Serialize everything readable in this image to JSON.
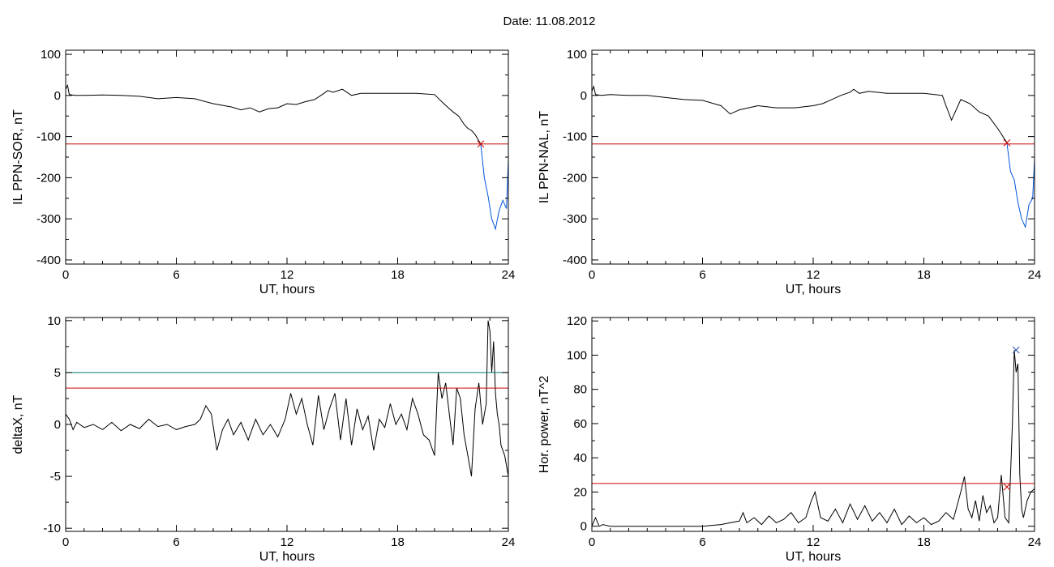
{
  "page": {
    "title": "Date:  11.08.2012"
  },
  "chart_data": [
    {
      "type": "line",
      "xlabel": "UT, hours",
      "ylabel": "IL PPN-SOR, nT",
      "xlim": [
        0,
        24
      ],
      "ylim": [
        -410,
        110
      ],
      "xticks": [
        0,
        6,
        12,
        18,
        24
      ],
      "yticks": [
        100,
        0,
        -100,
        -200,
        -300,
        -400
      ],
      "thresholds": [
        {
          "value": -118,
          "color": "#cc0000"
        }
      ],
      "markers": [
        {
          "x": 22.5,
          "y": -118,
          "color": "#cc0000",
          "symbol": "x"
        }
      ],
      "series": [
        {
          "color": "#000000",
          "x": [
            0,
            0.1,
            0.2,
            0.5,
            1,
            2,
            3,
            4,
            5,
            6,
            7,
            8,
            9,
            9.5,
            10,
            10.5,
            11,
            11.5,
            12,
            12.5,
            13,
            13.5,
            14,
            14.2,
            14.5,
            15,
            15.5,
            16,
            17,
            18,
            19,
            20,
            20.5,
            21,
            21.3,
            21.6,
            21.8,
            22,
            22.2,
            22.5
          ],
          "y": [
            15,
            25,
            2,
            0,
            0,
            1,
            0,
            -2,
            -8,
            -5,
            -8,
            -20,
            -28,
            -35,
            -30,
            -40,
            -32,
            -30,
            -20,
            -22,
            -15,
            -10,
            5,
            12,
            8,
            15,
            0,
            5,
            5,
            5,
            5,
            2,
            -20,
            -40,
            -50,
            -70,
            -80,
            -85,
            -95,
            -118
          ]
        },
        {
          "color": "#0055dd",
          "x": [
            22.5,
            22.7,
            22.9,
            23.1,
            23.3,
            23.5,
            23.7,
            23.9,
            24
          ],
          "y": [
            -118,
            -200,
            -245,
            -300,
            -325,
            -280,
            -255,
            -275,
            -155
          ]
        }
      ]
    },
    {
      "type": "line",
      "xlabel": "UT, hours",
      "ylabel": "IL PPN-NAL, nT",
      "xlim": [
        0,
        24
      ],
      "ylim": [
        -410,
        110
      ],
      "xticks": [
        0,
        6,
        12,
        18,
        24
      ],
      "yticks": [
        100,
        0,
        -100,
        -200,
        -300,
        -400
      ],
      "thresholds": [
        {
          "value": -118,
          "color": "#cc0000"
        }
      ],
      "markers": [
        {
          "x": 22.5,
          "y": -115,
          "color": "#cc0000",
          "symbol": "x"
        }
      ],
      "series": [
        {
          "color": "#000000",
          "x": [
            0,
            0.1,
            0.2,
            0.5,
            1,
            2,
            3,
            4,
            5,
            6,
            7,
            7.5,
            8,
            9,
            10,
            11,
            12,
            12.5,
            13,
            13.5,
            14,
            14.2,
            14.5,
            15,
            16,
            17,
            18,
            19,
            19.2,
            19.5,
            20,
            20.5,
            21,
            21.5,
            22,
            22.5
          ],
          "y": [
            10,
            22,
            2,
            0,
            2,
            0,
            0,
            -5,
            -10,
            -12,
            -25,
            -45,
            -35,
            -25,
            -30,
            -30,
            -25,
            -20,
            -10,
            0,
            8,
            15,
            5,
            10,
            5,
            5,
            5,
            0,
            -25,
            -60,
            -10,
            -20,
            -40,
            -50,
            -80,
            -115
          ]
        },
        {
          "color": "#0055dd",
          "x": [
            22.5,
            22.7,
            22.9,
            23.1,
            23.3,
            23.5,
            23.7,
            23.9,
            24
          ],
          "y": [
            -115,
            -185,
            -205,
            -260,
            -300,
            -320,
            -265,
            -250,
            -155
          ]
        }
      ]
    },
    {
      "type": "line",
      "xlabel": "UT, hours",
      "ylabel": "deltaX, nT",
      "xlim": [
        0,
        24
      ],
      "ylim": [
        -10.3,
        10.3
      ],
      "xticks": [
        0,
        6,
        12,
        18,
        24
      ],
      "yticks": [
        10,
        5,
        0,
        -5,
        -10
      ],
      "thresholds": [
        {
          "value": 5,
          "color": "#007777"
        },
        {
          "value": 3.5,
          "color": "#cc0000"
        }
      ],
      "markers": [],
      "series": [
        {
          "color": "#000000",
          "x": [
            0,
            0.2,
            0.4,
            0.6,
            1,
            1.5,
            2,
            2.5,
            3,
            3.5,
            4,
            4.5,
            5,
            5.5,
            6,
            6.5,
            7,
            7.3,
            7.6,
            7.9,
            8.2,
            8.5,
            8.8,
            9.1,
            9.5,
            9.9,
            10.3,
            10.7,
            11.1,
            11.5,
            11.9,
            12.2,
            12.5,
            12.8,
            13.1,
            13.4,
            13.7,
            14,
            14.3,
            14.6,
            14.9,
            15.2,
            15.5,
            15.8,
            16.1,
            16.4,
            16.7,
            17,
            17.3,
            17.6,
            17.9,
            18.2,
            18.5,
            18.8,
            19.1,
            19.4,
            19.7,
            20,
            20.2,
            20.4,
            20.6,
            20.8,
            21,
            21.2,
            21.4,
            21.6,
            21.8,
            22,
            22.2,
            22.4,
            22.6,
            22.8,
            22.9,
            23,
            23.1,
            23.2,
            23.3,
            23.4,
            23.5,
            23.6,
            23.8,
            24
          ],
          "y": [
            1,
            0.5,
            -0.5,
            0.2,
            -0.3,
            0,
            -0.5,
            0.2,
            -0.6,
            0,
            -0.4,
            0.5,
            -0.2,
            0,
            -0.5,
            -0.2,
            0,
            0.5,
            1.8,
            1,
            -2.5,
            -0.5,
            0.5,
            -1,
            0.2,
            -1.5,
            0.5,
            -1,
            0,
            -1.2,
            0.5,
            3,
            1,
            2.5,
            0,
            -2,
            2.8,
            -0.5,
            1.5,
            3,
            -1.5,
            2.5,
            -2,
            1.5,
            -0.5,
            0.8,
            -2.5,
            0.5,
            -0.3,
            2,
            0,
            1,
            -0.5,
            2.5,
            1,
            -1,
            -1.5,
            -3,
            5,
            2.5,
            4,
            1,
            -2,
            3.5,
            2.5,
            -1,
            -3,
            -5,
            1.5,
            4,
            0,
            2,
            10,
            9,
            5,
            8,
            3,
            1,
            0,
            -2,
            -3,
            -5
          ]
        }
      ]
    },
    {
      "type": "line",
      "xlabel": "UT, hours",
      "ylabel": "Hor. power, nT^2",
      "xlim": [
        0,
        24
      ],
      "ylim": [
        -3,
        122
      ],
      "xticks": [
        0,
        6,
        12,
        18,
        24
      ],
      "yticks": [
        120,
        100,
        80,
        60,
        40,
        20,
        0
      ],
      "thresholds": [
        {
          "value": 25,
          "color": "#cc0000"
        }
      ],
      "markers": [
        {
          "x": 22.5,
          "y": 23,
          "color": "#cc0000",
          "symbol": "x"
        },
        {
          "x": 23,
          "y": 103,
          "color": "#2a4fb0",
          "symbol": "x"
        }
      ],
      "series": [
        {
          "color": "#000000",
          "x": [
            0,
            0.2,
            0.4,
            0.6,
            1,
            2,
            3,
            4,
            5,
            6,
            6.5,
            7,
            7.5,
            8,
            8.2,
            8.4,
            8.8,
            9.2,
            9.6,
            10,
            10.4,
            10.8,
            11.2,
            11.6,
            11.9,
            12.1,
            12.4,
            12.8,
            13.2,
            13.6,
            14,
            14.4,
            14.8,
            15.2,
            15.6,
            16,
            16.4,
            16.8,
            17.2,
            17.6,
            18,
            18.4,
            18.8,
            19.2,
            19.6,
            20,
            20.2,
            20.4,
            20.6,
            20.8,
            21,
            21.2,
            21.4,
            21.6,
            21.8,
            22,
            22.2,
            22.4,
            22.6,
            22.8,
            22.9,
            23,
            23.1,
            23.2,
            23.3,
            23.4,
            23.6,
            23.8,
            24
          ],
          "y": [
            0,
            5,
            0,
            1,
            0,
            0,
            0,
            0,
            0,
            0,
            0.5,
            1,
            2,
            3,
            8,
            2,
            5,
            1,
            6,
            2,
            4,
            8,
            2,
            5,
            15,
            20,
            5,
            3,
            10,
            2,
            13,
            4,
            12,
            3,
            8,
            2,
            10,
            1,
            6,
            2,
            5,
            1,
            3,
            8,
            4,
            20,
            29,
            10,
            5,
            15,
            3,
            18,
            8,
            12,
            2,
            5,
            30,
            5,
            2,
            60,
            103,
            90,
            95,
            30,
            10,
            5,
            15,
            20,
            22
          ]
        }
      ]
    }
  ]
}
